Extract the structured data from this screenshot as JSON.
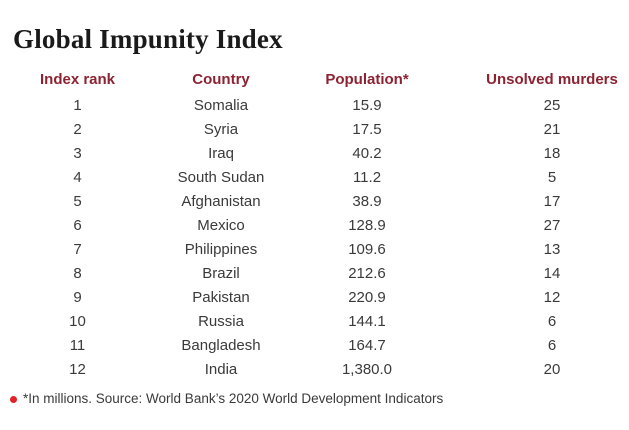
{
  "title": "Global Impunity Index",
  "colors": {
    "header_text": "#8d2232",
    "body_text": "#3a3a3a",
    "title_text": "#1a1a1a",
    "footnote_bullet": "#e0232a",
    "background": "#ffffff"
  },
  "footnote": {
    "text": "*In millions. Source: World Bank’s 2020 World Development Indicators"
  },
  "chart_data": {
    "type": "table",
    "title": "Global Impunity Index",
    "columns": [
      "Index rank",
      "Country",
      "Population*",
      "Unsolved murders"
    ],
    "rows": [
      [
        "1",
        "Somalia",
        "15.9",
        "25"
      ],
      [
        "2",
        "Syria",
        "17.5",
        "21"
      ],
      [
        "3",
        "Iraq",
        "40.2",
        "18"
      ],
      [
        "4",
        "South Sudan",
        "11.2",
        "5"
      ],
      [
        "5",
        "Afghanistan",
        "38.9",
        "17"
      ],
      [
        "6",
        "Mexico",
        "128.9",
        "27"
      ],
      [
        "7",
        "Philippines",
        "109.6",
        "13"
      ],
      [
        "8",
        "Brazil",
        "212.6",
        "14"
      ],
      [
        "9",
        "Pakistan",
        "220.9",
        "12"
      ],
      [
        "10",
        "Russia",
        "144.1",
        "6"
      ],
      [
        "11",
        "Bangladesh",
        "164.7",
        "6"
      ],
      [
        "12",
        "India",
        "1,380.0",
        "20"
      ]
    ],
    "footnote": "*In millions. Source: World Bank’s 2020 World Development Indicators",
    "layout": {
      "grid": false,
      "column_alignment": "center"
    }
  }
}
